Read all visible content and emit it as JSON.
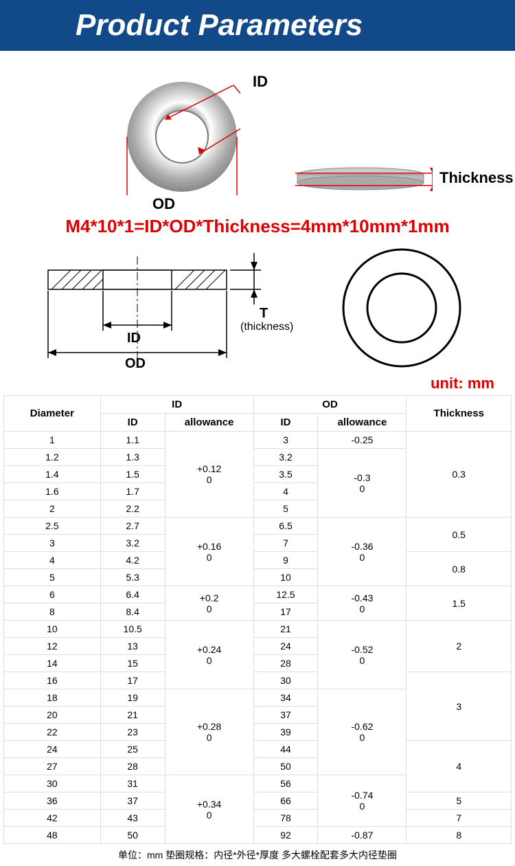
{
  "header": {
    "title": "Product Parameters"
  },
  "diagram": {
    "label_id": "ID",
    "label_od": "OD",
    "label_thickness": "Thickness",
    "label_t": "T",
    "label_t_sub": "(thickness)",
    "formula": "M4*10*1=ID*OD*Thickness=4mm*10mm*1mm",
    "unit": "unit: mm"
  },
  "table": {
    "headers": {
      "diameter": "Diameter",
      "id_group": "ID",
      "id_col": "ID",
      "id_allow": "allowance",
      "od_group": "OD",
      "od_id": "ID",
      "od_allow": "allowance",
      "thickness": "Thickness"
    },
    "rows": [
      {
        "d": "1",
        "id": "1.1",
        "ida": "",
        "odid": "3",
        "oda": "-0.25",
        "t": ""
      },
      {
        "d": "1.2",
        "id": "1.3",
        "ida": "",
        "odid": "3.2",
        "oda": "",
        "t": ""
      },
      {
        "d": "1.4",
        "id": "1.5",
        "ida": "+0.12",
        "odid": "3.5",
        "oda": "-0.3",
        "t": "0.3"
      },
      {
        "d": "1.6",
        "id": "1.7",
        "ida": "0",
        "odid": "4",
        "oda": "0",
        "t": ""
      },
      {
        "d": "2",
        "id": "2.2",
        "ida": "",
        "odid": "5",
        "oda": "",
        "t": ""
      },
      {
        "d": "2.5",
        "id": "2.7",
        "ida": "",
        "odid": "6.5",
        "oda": "",
        "t": ""
      },
      {
        "d": "3",
        "id": "3.2",
        "ida": "+0.16",
        "odid": "7",
        "oda": "-0.36",
        "t": "0.5"
      },
      {
        "d": "4",
        "id": "4.2",
        "ida": "0",
        "odid": "9",
        "oda": "0",
        "t": ""
      },
      {
        "d": "5",
        "id": "5.3",
        "ida": "",
        "odid": "10",
        "oda": "",
        "t": "0.8"
      },
      {
        "d": "6",
        "id": "6.4",
        "ida": "+0.2",
        "odid": "12.5",
        "oda": "-0.43",
        "t": ""
      },
      {
        "d": "8",
        "id": "8.4",
        "ida": "0",
        "odid": "17",
        "oda": "0",
        "t": "1.5"
      },
      {
        "d": "10",
        "id": "10.5",
        "ida": "",
        "odid": "21",
        "oda": "",
        "t": ""
      },
      {
        "d": "12",
        "id": "13",
        "ida": "+0.24",
        "odid": "24",
        "oda": "-0.52",
        "t": "2"
      },
      {
        "d": "14",
        "id": "15",
        "ida": "0",
        "odid": "28",
        "oda": "0",
        "t": ""
      },
      {
        "d": "16",
        "id": "17",
        "ida": "",
        "odid": "30",
        "oda": "",
        "t": ""
      },
      {
        "d": "18",
        "id": "19",
        "ida": "",
        "odid": "34",
        "oda": "",
        "t": ""
      },
      {
        "d": "20",
        "id": "21",
        "ida": "+0.28",
        "odid": "37",
        "oda": "-0.62",
        "t": "3"
      },
      {
        "d": "22",
        "id": "23",
        "ida": "0",
        "odid": "39",
        "oda": "0",
        "t": ""
      },
      {
        "d": "24",
        "id": "25",
        "ida": "",
        "odid": "44",
        "oda": "",
        "t": ""
      },
      {
        "d": "27",
        "id": "28",
        "ida": "",
        "odid": "50",
        "oda": "",
        "t": "4"
      },
      {
        "d": "30",
        "id": "31",
        "ida": "",
        "odid": "56",
        "oda": "-0.74",
        "t": ""
      },
      {
        "d": "36",
        "id": "37",
        "ida": "+0.34",
        "odid": "66",
        "oda": "0",
        "t": "5"
      },
      {
        "d": "42",
        "id": "43",
        "ida": "0",
        "odid": "78",
        "oda": "",
        "t": "7"
      },
      {
        "d": "48",
        "id": "50",
        "ida": "",
        "odid": "92",
        "oda": "-0.87",
        "t": "8"
      }
    ],
    "id_allow_groups": [
      {
        "text1": "+0.12",
        "text2": "0",
        "span": 5
      },
      {
        "text1": "+0.16",
        "text2": "0",
        "span": 4
      },
      {
        "text1": "+0.2",
        "text2": "0",
        "span": 2
      },
      {
        "text1": "+0.24",
        "text2": "0",
        "span": 4
      },
      {
        "text1": "+0.28",
        "text2": "0",
        "span": 5
      },
      {
        "text1": "+0.34",
        "text2": "0",
        "span": 4
      }
    ],
    "od_allow_groups": [
      {
        "text1": "-0.25",
        "text2": "",
        "span": 1
      },
      {
        "text1": "-0.3",
        "text2": "0",
        "span": 4
      },
      {
        "text1": "-0.36",
        "text2": "0",
        "span": 4
      },
      {
        "text1": "-0.43",
        "text2": "0",
        "span": 2
      },
      {
        "text1": "-0.52",
        "text2": "0",
        "span": 4
      },
      {
        "text1": "-0.62",
        "text2": "0",
        "span": 5
      },
      {
        "text1": "-0.74",
        "text2": "0",
        "span": 3
      },
      {
        "text1": "-0.87",
        "text2": "",
        "span": 1
      }
    ],
    "thick_groups": [
      {
        "text": "0.3",
        "span": 5
      },
      {
        "text": "0.5",
        "span": 2
      },
      {
        "text": "0.8",
        "span": 2
      },
      {
        "text": "1.5",
        "span": 2
      },
      {
        "text": "2",
        "span": 3
      },
      {
        "text": "3",
        "span": 4
      },
      {
        "text": "4",
        "span": 3
      },
      {
        "text": "5",
        "span": 1
      },
      {
        "text": "7",
        "span": 1
      },
      {
        "text": "8",
        "span": 1
      }
    ]
  },
  "footer": "单位：mm 垫圈规格：内径*外径*厚度 多大螺栓配套多大内径垫圈",
  "colors": {
    "header_bg": "#124989",
    "accent": "#d00000",
    "border": "#dddddd"
  }
}
